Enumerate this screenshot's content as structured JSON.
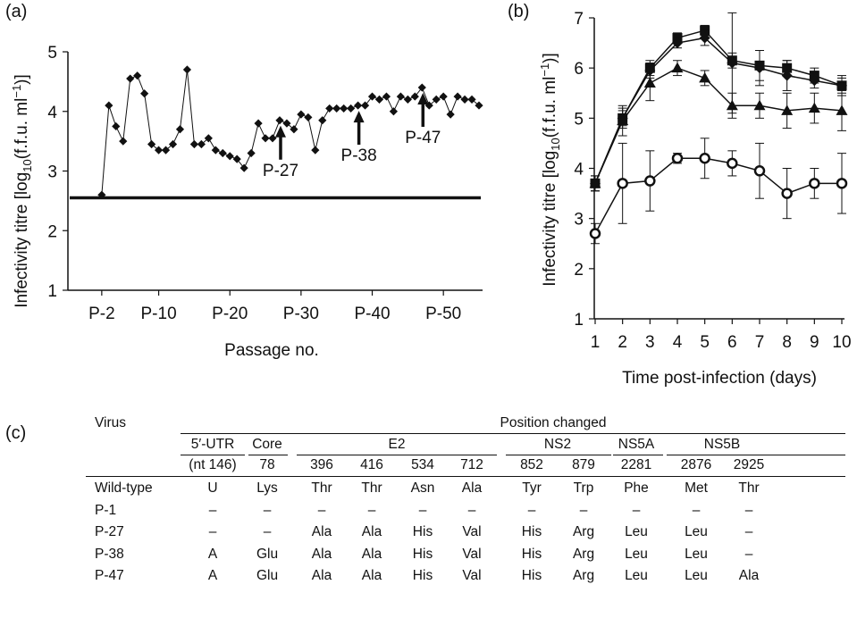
{
  "panels": {
    "a_label": "(a)",
    "b_label": "(b)",
    "c_label": "(c)"
  },
  "chart_data": [
    {
      "type": "line",
      "panel": "(a)",
      "xlabel": "Passage no.",
      "ylabel": "Infectivity titre [log10(f.f.u. ml⁻¹)]",
      "ylim": [
        1,
        5
      ],
      "yticks": [
        "1",
        "2",
        "3",
        "4",
        "5"
      ],
      "xlim": [
        -2,
        55
      ],
      "xticks": [
        {
          "value": 2,
          "label": "P-2"
        },
        {
          "value": 10,
          "label": "P-10"
        },
        {
          "value": 20,
          "label": "P-20"
        },
        {
          "value": 30,
          "label": "P-30"
        },
        {
          "value": 40,
          "label": "P-40"
        },
        {
          "value": 50,
          "label": "P-50"
        }
      ],
      "grid": false,
      "baseline": 2.55,
      "series": [
        {
          "marker": "diamond",
          "x": [
            2,
            3,
            4,
            5,
            6,
            7,
            8,
            9,
            10,
            11,
            12,
            13,
            14,
            15,
            16,
            17,
            18,
            19,
            20,
            21,
            22,
            23,
            24,
            25,
            26,
            27,
            28,
            29,
            30,
            31,
            32,
            33,
            34,
            35,
            36,
            37,
            38,
            39,
            40,
            41,
            42,
            43,
            44,
            45,
            46,
            47,
            48,
            49,
            50,
            51,
            52,
            53,
            54,
            55
          ],
          "values": [
            2.6,
            4.1,
            3.75,
            3.5,
            4.55,
            4.6,
            4.3,
            3.45,
            3.35,
            3.35,
            3.45,
            3.7,
            4.7,
            3.45,
            3.45,
            3.55,
            3.35,
            3.3,
            3.25,
            3.2,
            3.05,
            3.3,
            3.8,
            3.55,
            3.55,
            3.85,
            3.8,
            3.7,
            3.95,
            3.9,
            3.35,
            3.85,
            4.05,
            4.05,
            4.05,
            4.05,
            4.1,
            4.1,
            4.25,
            4.2,
            4.25,
            4.0,
            4.25,
            4.2,
            4.25,
            4.4,
            4.1,
            4.2,
            4.25,
            3.95,
            4.25,
            4.2,
            4.2,
            4.1
          ]
        }
      ],
      "annotations": [
        {
          "label": "P-27",
          "x": 27
        },
        {
          "label": "P-38",
          "x": 38
        },
        {
          "label": "P-47",
          "x": 47
        }
      ]
    },
    {
      "type": "line",
      "panel": "(b)",
      "xlabel": "Time post-infection (days)",
      "ylabel": "Infectivity titre [log10(f.f.u. ml⁻¹)]",
      "xlim": [
        1,
        10
      ],
      "ylim": [
        1,
        7
      ],
      "xticks": [
        "1",
        "2",
        "3",
        "4",
        "5",
        "6",
        "7",
        "8",
        "9",
        "10"
      ],
      "yticks": [
        "1",
        "2",
        "3",
        "4",
        "5",
        "6",
        "7"
      ],
      "grid": false,
      "x": [
        1,
        2,
        3,
        4,
        5,
        6,
        7,
        8,
        9,
        10
      ],
      "series": [
        {
          "marker": "square",
          "values": [
            3.7,
            5.0,
            6.0,
            6.6,
            6.75,
            6.15,
            6.05,
            6.0,
            5.85,
            5.65
          ],
          "err": [
            0.15,
            0.15,
            0.15,
            0.1,
            0.1,
            0.15,
            0.3,
            0.15,
            0.15,
            0.2
          ]
        },
        {
          "marker": "diamond",
          "values": [
            3.7,
            5.0,
            5.95,
            6.5,
            6.6,
            6.1,
            6.0,
            5.85,
            5.75,
            5.65
          ],
          "err": [
            0.15,
            0.2,
            0.15,
            0.1,
            0.15,
            1.0,
            0.35,
            0.3,
            0.15,
            0.15
          ]
        },
        {
          "marker": "triangle",
          "values": [
            3.7,
            4.95,
            5.7,
            6.0,
            5.8,
            5.25,
            5.25,
            5.15,
            5.2,
            5.15
          ],
          "err": [
            0.15,
            0.3,
            0.35,
            0.15,
            0.15,
            0.25,
            0.25,
            0.35,
            0.3,
            0.4
          ]
        },
        {
          "marker": "open-circle",
          "values": [
            2.7,
            3.7,
            3.75,
            4.2,
            4.2,
            4.1,
            3.95,
            3.5,
            3.7,
            3.7
          ],
          "err": [
            0.2,
            0.8,
            0.6,
            0.1,
            0.4,
            0.25,
            0.55,
            0.5,
            0.3,
            0.6
          ]
        }
      ]
    }
  ],
  "table": {
    "virus_header": "Virus",
    "position_changed": "Position changed",
    "groups": [
      "5′-UTR",
      "Core",
      "E2",
      "NS2",
      "NS5A",
      "NS5B"
    ],
    "subheaders": [
      "(nt 146)",
      "78",
      "396",
      "416",
      "534",
      "712",
      "852",
      "879",
      "2281",
      "2876",
      "2925"
    ],
    "rows": [
      {
        "name": "Wild-type",
        "cells": [
          "U",
          "Lys",
          "Thr",
          "Thr",
          "Asn",
          "Ala",
          "Tyr",
          "Trp",
          "Phe",
          "Met",
          "Thr"
        ]
      },
      {
        "name": "P-1",
        "cells": [
          "–",
          "–",
          "–",
          "–",
          "–",
          "–",
          "–",
          "–",
          "–",
          "–",
          "–"
        ]
      },
      {
        "name": "P-27",
        "cells": [
          "–",
          "–",
          "Ala",
          "Ala",
          "His",
          "Val",
          "His",
          "Arg",
          "Leu",
          "Leu",
          "–"
        ]
      },
      {
        "name": "P-38",
        "cells": [
          "A",
          "Glu",
          "Ala",
          "Ala",
          "His",
          "Val",
          "His",
          "Arg",
          "Leu",
          "Leu",
          "–"
        ]
      },
      {
        "name": "P-47",
        "cells": [
          "A",
          "Glu",
          "Ala",
          "Ala",
          "His",
          "Val",
          "His",
          "Arg",
          "Leu",
          "Leu",
          "Ala"
        ]
      }
    ]
  }
}
